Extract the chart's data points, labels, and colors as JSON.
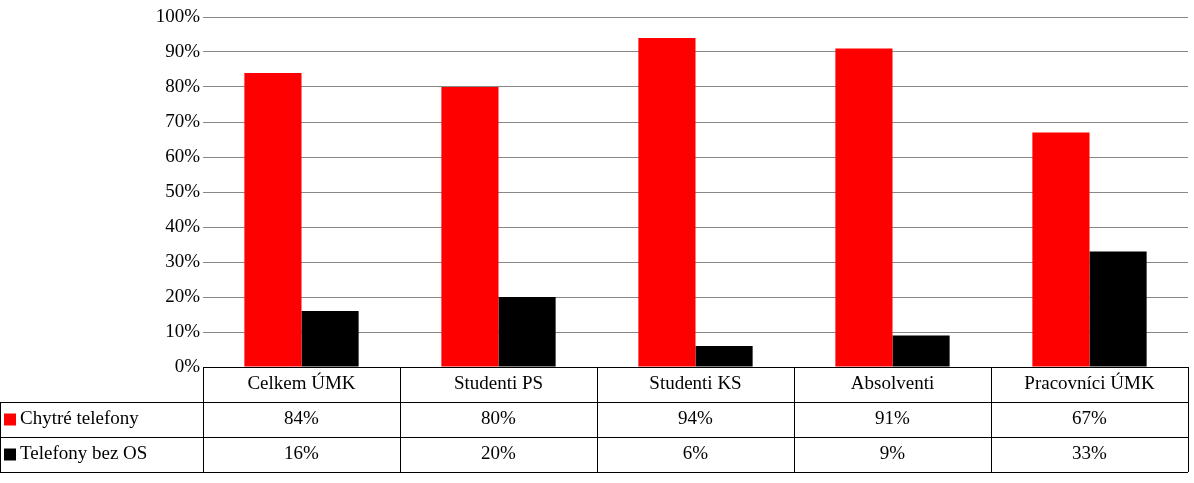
{
  "chart_data": {
    "type": "bar",
    "categories": [
      "Celkem ÚMK",
      "Studenti PS",
      "Studenti KS",
      "Absolventi",
      "Pracovníci ÚMK"
    ],
    "series": [
      {
        "name": "Chytré telefony",
        "color": "#ff0000",
        "values": [
          84,
          80,
          94,
          91,
          67
        ],
        "value_labels": [
          "84%",
          "80%",
          "94%",
          "91%",
          "67%"
        ]
      },
      {
        "name": "Telefony bez OS",
        "color": "#000000",
        "values": [
          16,
          20,
          6,
          9,
          33
        ],
        "value_labels": [
          "16%",
          "20%",
          "6%",
          "9%",
          "33%"
        ]
      }
    ],
    "ylim": [
      0,
      100
    ],
    "yticks": [
      {
        "value": 0,
        "label": "0%"
      },
      {
        "value": 10,
        "label": "10%"
      },
      {
        "value": 20,
        "label": "20%"
      },
      {
        "value": 30,
        "label": "30%"
      },
      {
        "value": 40,
        "label": "40%"
      },
      {
        "value": 50,
        "label": "50%"
      },
      {
        "value": 60,
        "label": "60%"
      },
      {
        "value": 70,
        "label": "70%"
      },
      {
        "value": 80,
        "label": "80%"
      },
      {
        "value": 90,
        "label": "90%"
      },
      {
        "value": 100,
        "label": "100%"
      }
    ],
    "grid": "y",
    "legend": "bottom"
  }
}
